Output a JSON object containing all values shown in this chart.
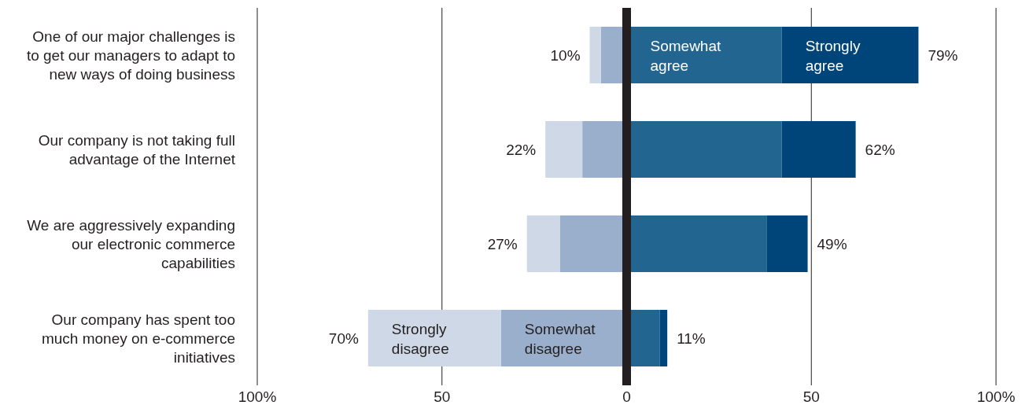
{
  "chart_data": {
    "type": "bar",
    "orientation": "horizontal",
    "stacked": true,
    "categories": [
      "One of our major challenges is to get our managers to adapt to new ways of doing business",
      "Our company is not taking full advantage of the Internet",
      "We are aggressively expanding our electronic commerce capabilities",
      "Our company has spent too much money on e-commerce initiatives"
    ],
    "series": [
      {
        "name": "Somewhat disagree",
        "color": "#9aafcc",
        "values": [
          -7,
          -12,
          -18,
          -34
        ]
      },
      {
        "name": "Strongly disagree",
        "color": "#ced8e6",
        "values": [
          -3,
          -10,
          -9,
          -36
        ]
      },
      {
        "name": "Somewhat agree",
        "color": "#236591",
        "values": [
          42,
          42,
          38,
          9
        ]
      },
      {
        "name": "Strongly agree",
        "color": "#00457a",
        "values": [
          37,
          20,
          11,
          2
        ]
      }
    ],
    "annotations": [
      {
        "text": "10%",
        "x": -10,
        "y": "One of our major challenges is to get our managers to adapt to new ways of doing business"
      },
      {
        "text": "79%",
        "x": 79,
        "y": "One of our major challenges is to get our managers to adapt to new ways of doing business"
      },
      {
        "text": "22%",
        "x": -22,
        "y": "Our company is not taking full advantage of the Internet"
      },
      {
        "text": "62%",
        "x": 62,
        "y": "Our company is not taking full advantage of the Internet"
      },
      {
        "text": "27%",
        "x": -27,
        "y": "We are aggressively expanding our electronic commerce capabilities"
      },
      {
        "text": "49%",
        "x": 49,
        "y": "We are aggressively expanding our electronic commerce capabilities"
      },
      {
        "text": "70%",
        "x": -70,
        "y": "Our company has spent too much money on e-commerce initiatives"
      },
      {
        "text": "11%",
        "x": 11,
        "y": "Our company has spent too much money on e-commerce initiatives"
      }
    ],
    "xlim": [
      -100,
      100
    ],
    "xticks": [
      {
        "value": -100,
        "label": "100%"
      },
      {
        "value": -50,
        "label": "50"
      },
      0,
      50,
      {
        "value": 100,
        "label": "100%"
      }
    ],
    "grid": "x",
    "ref_lines": [
      {
        "axis": "x",
        "value": 0,
        "color": "#231f20"
      }
    ]
  }
}
